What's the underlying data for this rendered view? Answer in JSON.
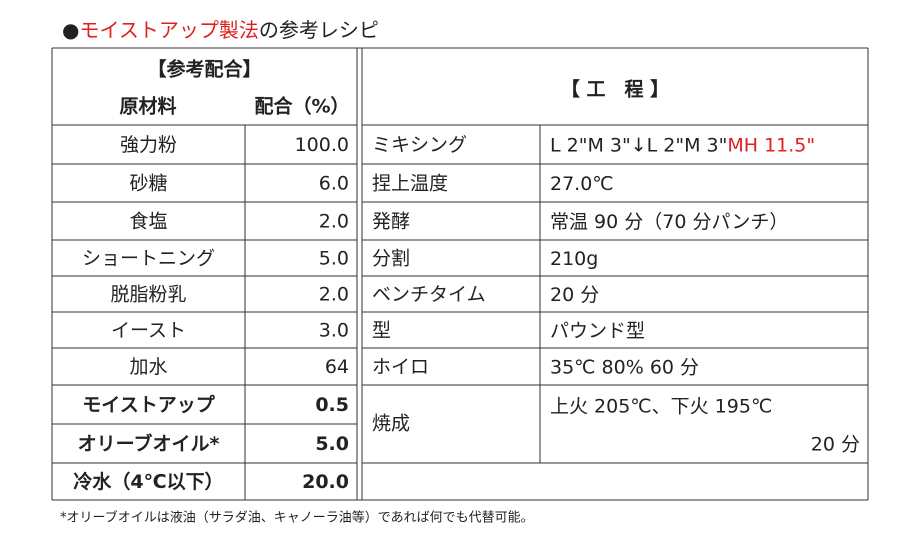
{
  "title": {
    "bullet": "●",
    "highlight": "モイストアップ製法",
    "rest": "の参考レシピ"
  },
  "table": {
    "left_header": {
      "title": "【参考配合】",
      "columns": [
        "原材料",
        "配合（%）"
      ]
    },
    "right_header": "【 工　程 】",
    "ingredients": [
      [
        "強力粉",
        "100.0"
      ],
      [
        "砂糖",
        "6.0"
      ],
      [
        "食塩",
        "2.0"
      ],
      [
        "ショートニング",
        "5.0"
      ],
      [
        "脱脂粉乳",
        "2.0"
      ],
      [
        "イースト",
        "3.0"
      ],
      [
        "加水",
        "64"
      ]
    ],
    "special_ingredients": [
      [
        "モイストアップ",
        "0.5"
      ],
      [
        "オリーブオイル*",
        "5.0"
      ],
      [
        "冷水（4℃以下）",
        "20.0"
      ]
    ],
    "process": [
      {
        "step": "ミキシング",
        "detail": "L 2\"M 3\"↓L 2\"M 3\"",
        "detail_highlight": "MH 11.5\""
      },
      {
        "step": "捏上温度",
        "detail": "27.0℃"
      },
      {
        "step": "発酵",
        "detail": "常温 90 分（70 分パンチ）"
      },
      {
        "step": "分割",
        "detail": "210g"
      },
      {
        "step": "ベンチタイム",
        "detail": "20 分"
      },
      {
        "step": "型",
        "detail": "パウンド型"
      },
      {
        "step": "ホイロ",
        "detail": "35℃  80% 60 分"
      },
      {
        "step": "焼成",
        "detail": "上火  205℃、下火  195℃",
        "detail_2": "20 分"
      }
    ]
  },
  "footnote": "*オリーブオイルは液油（サラダ油、キャノーラ油等）であれば何でも代替可能。"
}
